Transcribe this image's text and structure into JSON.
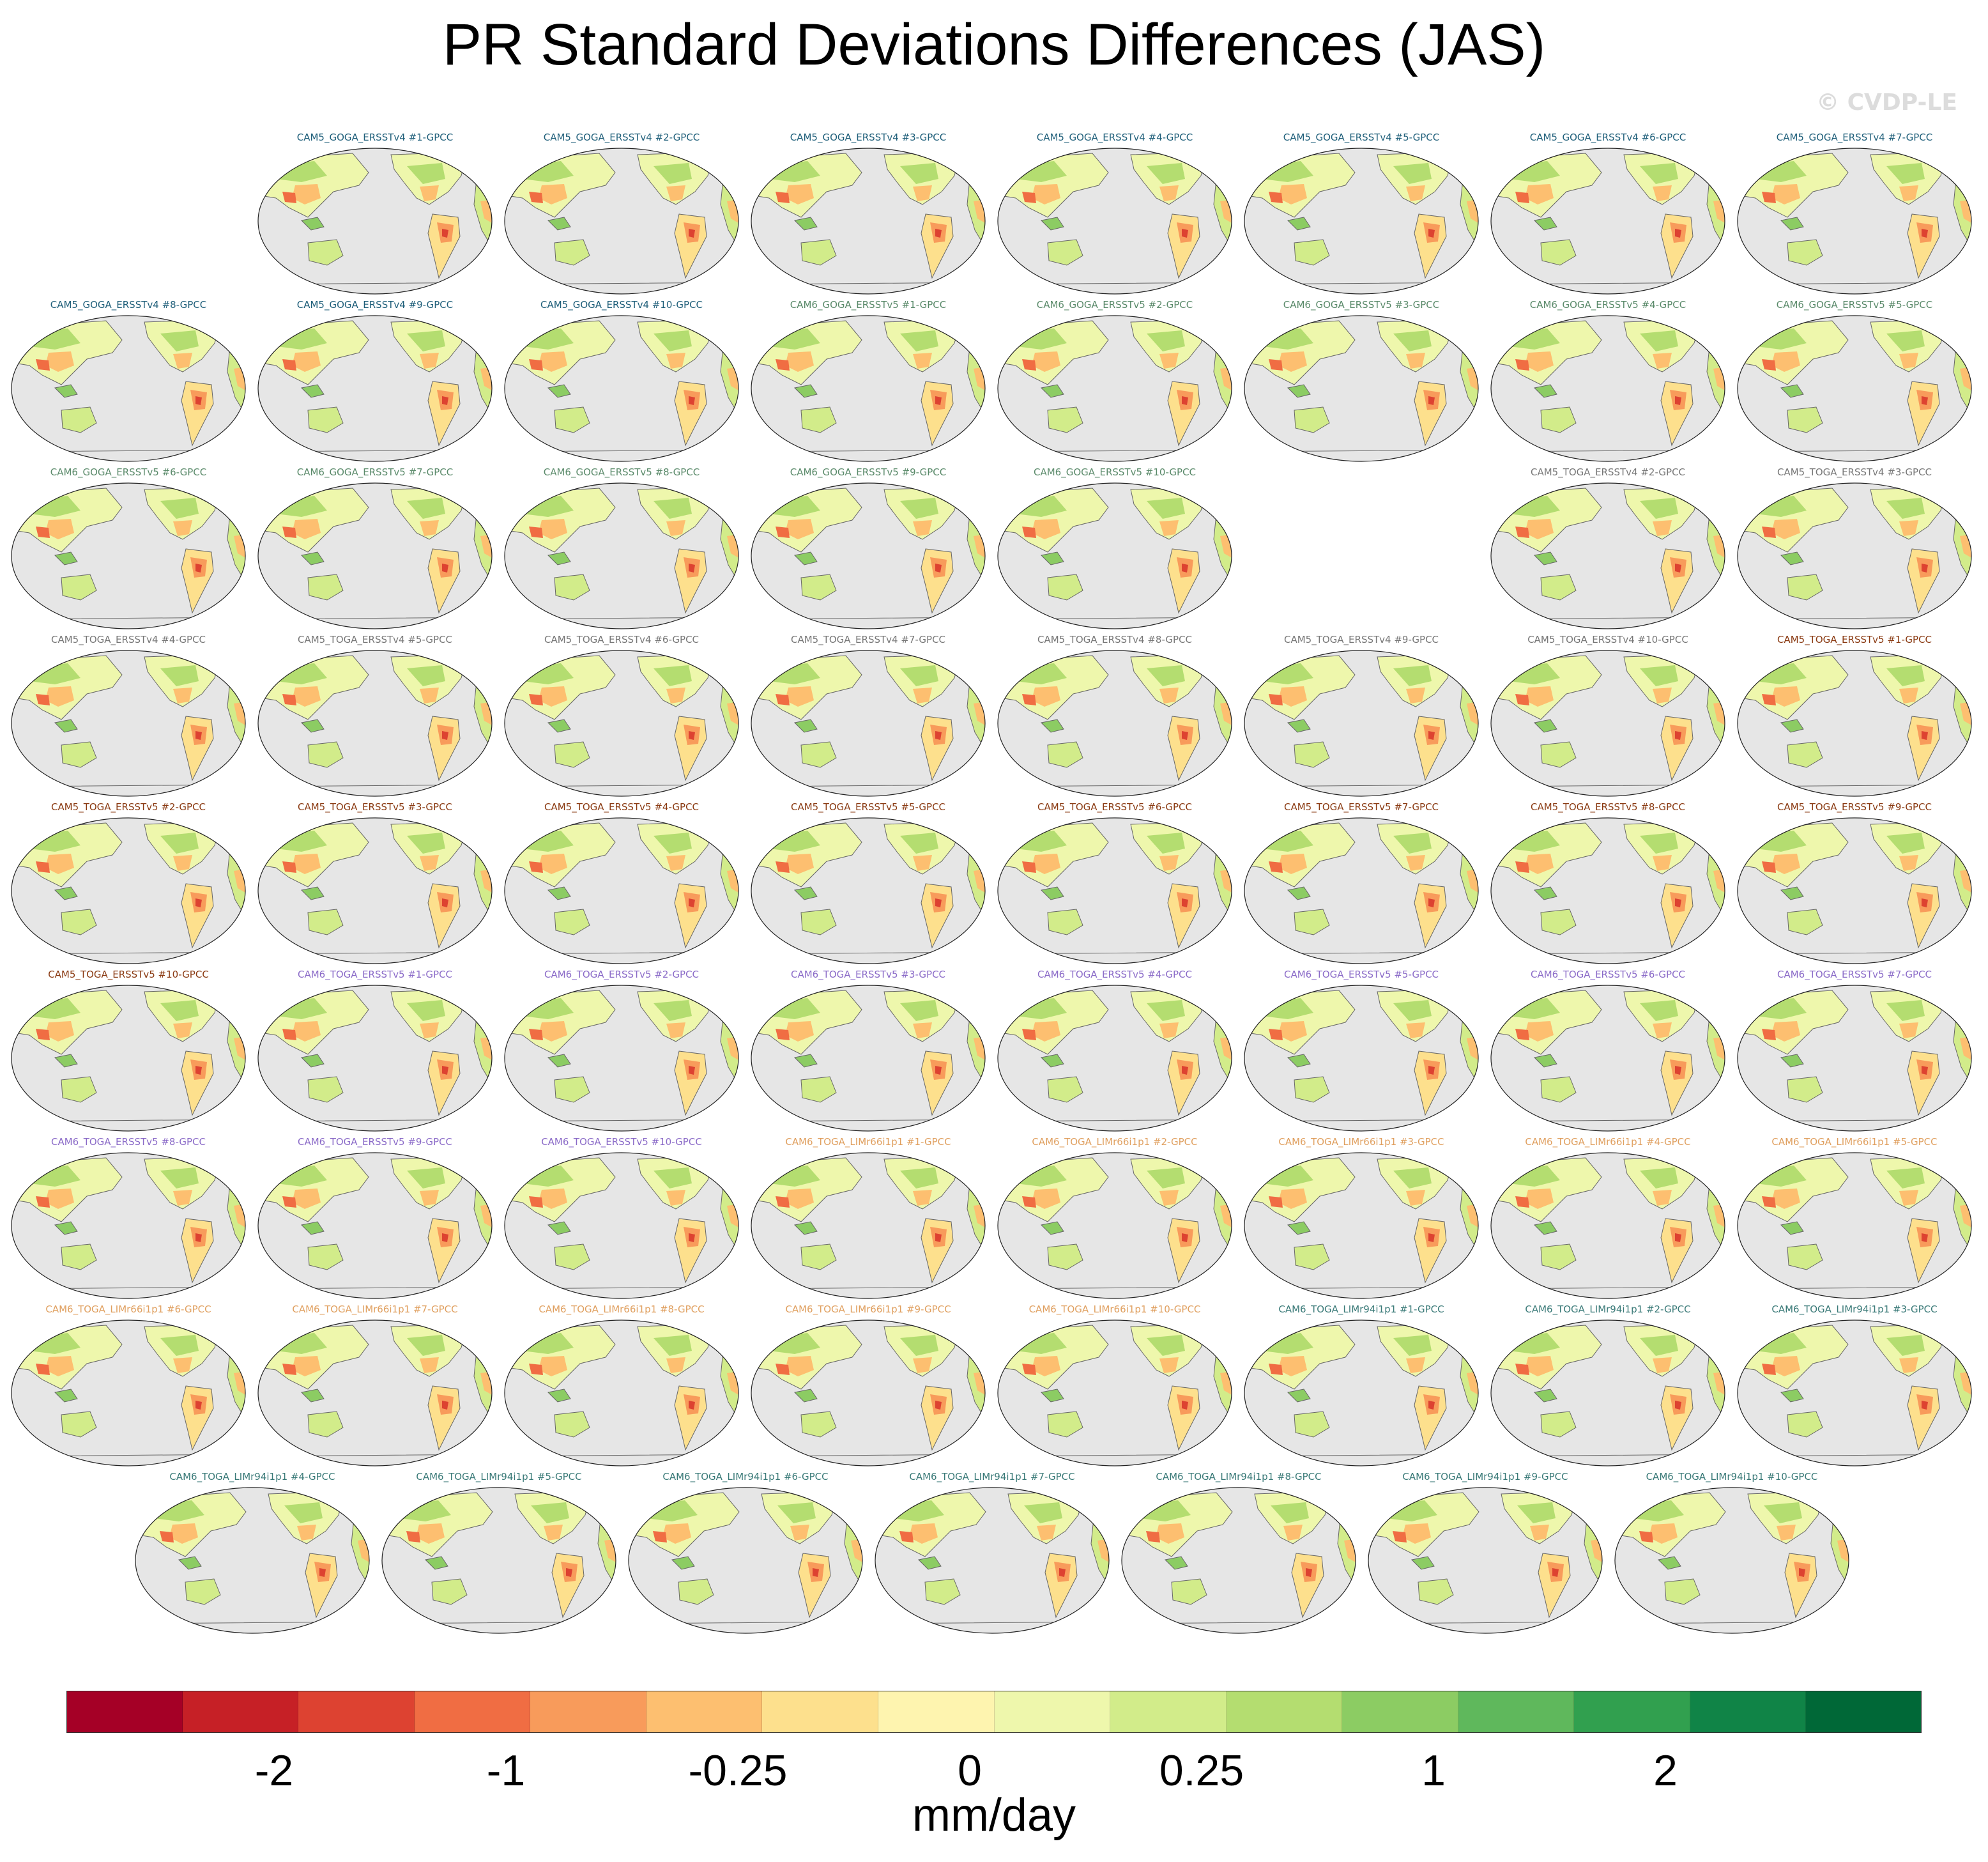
{
  "title": "PR Standard Deviations Differences (JAS)",
  "watermark": "© CVDP-LE",
  "units": "mm/day",
  "colors": [
    "#a50026",
    "#c62026",
    "#dd4231",
    "#f06d43",
    "#f89b5b",
    "#fdbf70",
    "#fde08d",
    "#fef4af",
    "#eef7ac",
    "#d2ec8a",
    "#b4dd70",
    "#8ccc63",
    "#5fb85c",
    "#31a04f",
    "#108447",
    "#006837"
  ],
  "tick_labels": [
    "-2",
    "-1",
    "-0.25",
    "0",
    "0.25",
    "1",
    "2"
  ],
  "group_colors": {
    "c5g4": "#1f5f7a",
    "c6g5": "#5a8a6a",
    "c5t4": "#777777",
    "c5t5": "#8a3a12",
    "c6t5": "#8b6bc8",
    "lm66": "#e0a060",
    "lm94": "#3a7a78"
  },
  "rows": [
    [
      {
        "label": "",
        "group": ""
      },
      {
        "label": "CAM5_GOGA_ERSSTv4 #1-GPCC",
        "group": "c5g4"
      },
      {
        "label": "CAM5_GOGA_ERSSTv4 #2-GPCC",
        "group": "c5g4"
      },
      {
        "label": "CAM5_GOGA_ERSSTv4 #3-GPCC",
        "group": "c5g4"
      },
      {
        "label": "CAM5_GOGA_ERSSTv4 #4-GPCC",
        "group": "c5g4"
      },
      {
        "label": "CAM5_GOGA_ERSSTv4 #5-GPCC",
        "group": "c5g4"
      },
      {
        "label": "CAM5_GOGA_ERSSTv4 #6-GPCC",
        "group": "c5g4"
      },
      {
        "label": "CAM5_GOGA_ERSSTv4 #7-GPCC",
        "group": "c5g4"
      }
    ],
    [
      {
        "label": "CAM5_GOGA_ERSSTv4 #8-GPCC",
        "group": "c5g4"
      },
      {
        "label": "CAM5_GOGA_ERSSTv4 #9-GPCC",
        "group": "c5g4"
      },
      {
        "label": "CAM5_GOGA_ERSSTv4 #10-GPCC",
        "group": "c5g4"
      },
      {
        "label": "CAM6_GOGA_ERSSTv5 #1-GPCC",
        "group": "c6g5"
      },
      {
        "label": "CAM6_GOGA_ERSSTv5 #2-GPCC",
        "group": "c6g5"
      },
      {
        "label": "CAM6_GOGA_ERSSTv5 #3-GPCC",
        "group": "c6g5"
      },
      {
        "label": "CAM6_GOGA_ERSSTv5 #4-GPCC",
        "group": "c6g5"
      },
      {
        "label": "CAM6_GOGA_ERSSTv5 #5-GPCC",
        "group": "c6g5"
      }
    ],
    [
      {
        "label": "CAM6_GOGA_ERSSTv5 #6-GPCC",
        "group": "c6g5"
      },
      {
        "label": "CAM6_GOGA_ERSSTv5 #7-GPCC",
        "group": "c6g5"
      },
      {
        "label": "CAM6_GOGA_ERSSTv5 #8-GPCC",
        "group": "c6g5"
      },
      {
        "label": "CAM6_GOGA_ERSSTv5 #9-GPCC",
        "group": "c6g5"
      },
      {
        "label": "CAM6_GOGA_ERSSTv5 #10-GPCC",
        "group": "c6g5"
      },
      {
        "label": "",
        "group": ""
      },
      {
        "label": "CAM5_TOGA_ERSSTv4 #2-GPCC",
        "group": "c5t4"
      },
      {
        "label": "CAM5_TOGA_ERSSTv4 #3-GPCC",
        "group": "c5t4"
      }
    ],
    [
      {
        "label": "CAM5_TOGA_ERSSTv4 #4-GPCC",
        "group": "c5t4"
      },
      {
        "label": "CAM5_TOGA_ERSSTv4 #5-GPCC",
        "group": "c5t4"
      },
      {
        "label": "CAM5_TOGA_ERSSTv4 #6-GPCC",
        "group": "c5t4"
      },
      {
        "label": "CAM5_TOGA_ERSSTv4 #7-GPCC",
        "group": "c5t4"
      },
      {
        "label": "CAM5_TOGA_ERSSTv4 #8-GPCC",
        "group": "c5t4"
      },
      {
        "label": "CAM5_TOGA_ERSSTv4 #9-GPCC",
        "group": "c5t4"
      },
      {
        "label": "CAM5_TOGA_ERSSTv4 #10-GPCC",
        "group": "c5t4"
      },
      {
        "label": "CAM5_TOGA_ERSSTv5 #1-GPCC",
        "group": "c5t5"
      }
    ],
    [
      {
        "label": "CAM5_TOGA_ERSSTv5 #2-GPCC",
        "group": "c5t5"
      },
      {
        "label": "CAM5_TOGA_ERSSTv5 #3-GPCC",
        "group": "c5t5"
      },
      {
        "label": "CAM5_TOGA_ERSSTv5 #4-GPCC",
        "group": "c5t5"
      },
      {
        "label": "CAM5_TOGA_ERSSTv5 #5-GPCC",
        "group": "c5t5"
      },
      {
        "label": "CAM5_TOGA_ERSSTv5 #6-GPCC",
        "group": "c5t5"
      },
      {
        "label": "CAM5_TOGA_ERSSTv5 #7-GPCC",
        "group": "c5t5"
      },
      {
        "label": "CAM5_TOGA_ERSSTv5 #8-GPCC",
        "group": "c5t5"
      },
      {
        "label": "CAM5_TOGA_ERSSTv5 #9-GPCC",
        "group": "c5t5"
      }
    ],
    [
      {
        "label": "CAM5_TOGA_ERSSTv5 #10-GPCC",
        "group": "c5t5"
      },
      {
        "label": "CAM6_TOGA_ERSSTv5 #1-GPCC",
        "group": "c6t5"
      },
      {
        "label": "CAM6_TOGA_ERSSTv5 #2-GPCC",
        "group": "c6t5"
      },
      {
        "label": "CAM6_TOGA_ERSSTv5 #3-GPCC",
        "group": "c6t5"
      },
      {
        "label": "CAM6_TOGA_ERSSTv5 #4-GPCC",
        "group": "c6t5"
      },
      {
        "label": "CAM6_TOGA_ERSSTv5 #5-GPCC",
        "group": "c6t5"
      },
      {
        "label": "CAM6_TOGA_ERSSTv5 #6-GPCC",
        "group": "c6t5"
      },
      {
        "label": "CAM6_TOGA_ERSSTv5 #7-GPCC",
        "group": "c6t5"
      }
    ],
    [
      {
        "label": "CAM6_TOGA_ERSSTv5 #8-GPCC",
        "group": "c6t5"
      },
      {
        "label": "CAM6_TOGA_ERSSTv5 #9-GPCC",
        "group": "c6t5"
      },
      {
        "label": "CAM6_TOGA_ERSSTv5 #10-GPCC",
        "group": "c6t5"
      },
      {
        "label": "CAM6_TOGA_LIMr66i1p1 #1-GPCC",
        "group": "lm66"
      },
      {
        "label": "CAM6_TOGA_LIMr66i1p1 #2-GPCC",
        "group": "lm66"
      },
      {
        "label": "CAM6_TOGA_LIMr66i1p1 #3-GPCC",
        "group": "lm66"
      },
      {
        "label": "CAM6_TOGA_LIMr66i1p1 #4-GPCC",
        "group": "lm66"
      },
      {
        "label": "CAM6_TOGA_LIMr66i1p1 #5-GPCC",
        "group": "lm66"
      }
    ],
    [
      {
        "label": "CAM6_TOGA_LIMr66i1p1 #6-GPCC",
        "group": "lm66"
      },
      {
        "label": "CAM6_TOGA_LIMr66i1p1 #7-GPCC",
        "group": "lm66"
      },
      {
        "label": "CAM6_TOGA_LIMr66i1p1 #8-GPCC",
        "group": "lm66"
      },
      {
        "label": "CAM6_TOGA_LIMr66i1p1 #9-GPCC",
        "group": "lm66"
      },
      {
        "label": "CAM6_TOGA_LIMr66i1p1 #10-GPCC",
        "group": "lm66"
      },
      {
        "label": "CAM6_TOGA_LIMr94i1p1 #1-GPCC",
        "group": "lm94"
      },
      {
        "label": "CAM6_TOGA_LIMr94i1p1 #2-GPCC",
        "group": "lm94"
      },
      {
        "label": "CAM6_TOGA_LIMr94i1p1 #3-GPCC",
        "group": "lm94"
      }
    ],
    [
      {
        "label": "CAM6_TOGA_LIMr94i1p1 #4-GPCC",
        "group": "lm94"
      },
      {
        "label": "CAM6_TOGA_LIMr94i1p1 #5-GPCC",
        "group": "lm94"
      },
      {
        "label": "CAM6_TOGA_LIMr94i1p1 #6-GPCC",
        "group": "lm94"
      },
      {
        "label": "CAM6_TOGA_LIMr94i1p1 #7-GPCC",
        "group": "lm94"
      },
      {
        "label": "CAM6_TOGA_LIMr94i1p1 #8-GPCC",
        "group": "lm94"
      },
      {
        "label": "CAM6_TOGA_LIMr94i1p1 #9-GPCC",
        "group": "lm94"
      },
      {
        "label": "CAM6_TOGA_LIMr94i1p1 #10-GPCC",
        "group": "lm94"
      }
    ]
  ]
}
